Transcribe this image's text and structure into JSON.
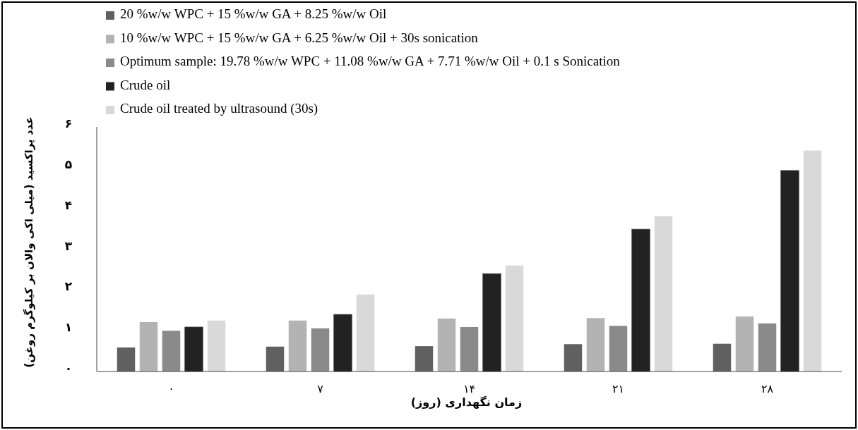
{
  "chart_data": {
    "type": "bar",
    "xlabel": "زمان نگهداری (روز)",
    "ylabel": "عدد پراکسید (میلی اکی والان بر کیلوگرم روغن)",
    "categories": [
      "۰",
      "۷",
      "۱۴",
      "۲۱",
      "۲۸"
    ],
    "series": [
      {
        "name": "20 %w/w WPC + 15 %w/w GA + 8.25 %w/w Oil",
        "color": "#606060",
        "values": [
          0.59,
          0.61,
          0.62,
          0.67,
          0.68
        ]
      },
      {
        "name": "10 %w/w WPC + 15 %w/w GA + 6.25 %w/w Oil + 30s sonication",
        "color": "#b3b3b3",
        "values": [
          1.21,
          1.25,
          1.3,
          1.31,
          1.35
        ]
      },
      {
        "name": "Optimum sample: 19.78 %w/w WPC + 11.08 %w/w GA + 7.71 %w/w Oil + 0.1 s Sonication",
        "color": "#8a8a8a",
        "values": [
          1.0,
          1.06,
          1.09,
          1.12,
          1.18
        ]
      },
      {
        "name": "Crude oil",
        "color": "#222222",
        "values": [
          1.09,
          1.4,
          2.4,
          3.49,
          4.93
        ]
      },
      {
        "name": "Crude oil treated by ultrasound (30s)",
        "color": "#d9d9d9",
        "values": [
          1.25,
          1.89,
          2.6,
          3.81,
          5.42
        ]
      }
    ],
    "ylim": [
      0,
      6
    ],
    "yticks": [
      {
        "value": 0,
        "label": "۰"
      },
      {
        "value": 1,
        "label": "۱"
      },
      {
        "value": 2,
        "label": "۲"
      },
      {
        "value": 3,
        "label": "۳"
      },
      {
        "value": 4,
        "label": "۴"
      },
      {
        "value": 5,
        "label": "۵"
      },
      {
        "value": 6,
        "label": "۶"
      }
    ],
    "grid": false,
    "legend": "top left"
  }
}
